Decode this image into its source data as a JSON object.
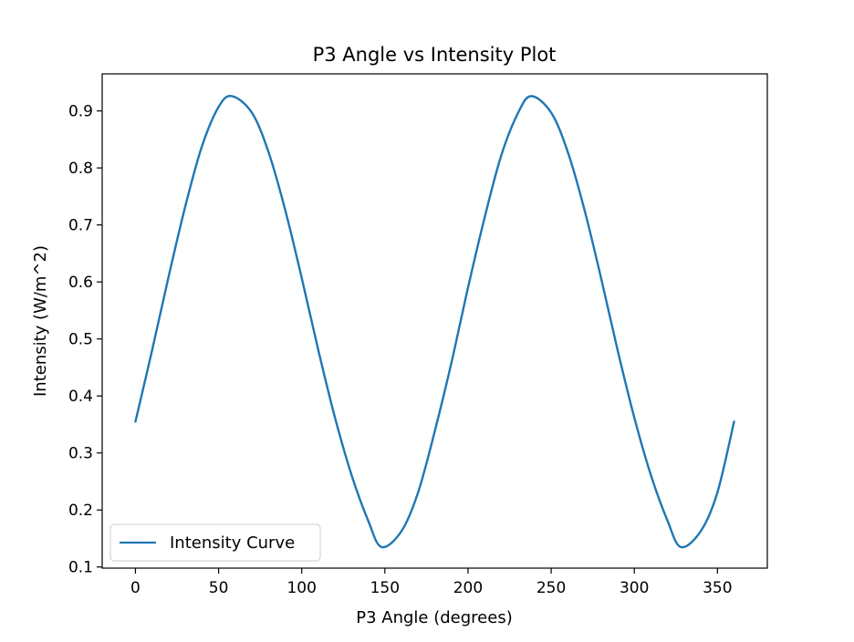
{
  "chart_data": {
    "type": "line",
    "title": "P3 Angle vs Intensity Plot",
    "xlabel": "P3 Angle (degrees)",
    "ylabel": "Intensity (W/m^2)",
    "xlim": [
      -20,
      380
    ],
    "ylim": [
      0.098,
      0.965
    ],
    "xticks": [
      0,
      50,
      100,
      150,
      200,
      250,
      300,
      350
    ],
    "yticks": [
      0.1,
      0.2,
      0.3,
      0.4,
      0.5,
      0.6,
      0.7,
      0.8,
      0.9
    ],
    "grid": false,
    "legend": {
      "position": "lower-left",
      "entries": [
        "Intensity Curve"
      ]
    },
    "series": [
      {
        "name": "Intensity Curve",
        "color": "#1f77b4",
        "x": [
          0,
          10,
          20,
          30,
          40,
          50,
          58,
          70,
          80,
          90,
          100,
          110,
          120,
          130,
          140,
          148,
          160,
          170,
          180,
          190,
          200,
          210,
          220,
          230,
          238,
          250,
          260,
          270,
          280,
          290,
          300,
          310,
          320,
          328,
          340,
          350,
          360
        ],
        "y": [
          0.355,
          0.48,
          0.61,
          0.733,
          0.838,
          0.907,
          0.926,
          0.897,
          0.828,
          0.727,
          0.607,
          0.48,
          0.362,
          0.261,
          0.181,
          0.135,
          0.163,
          0.231,
          0.338,
          0.458,
          0.59,
          0.713,
          0.822,
          0.896,
          0.926,
          0.897,
          0.828,
          0.727,
          0.607,
          0.48,
          0.362,
          0.261,
          0.181,
          0.135,
          0.163,
          0.231,
          0.355
        ]
      }
    ]
  }
}
